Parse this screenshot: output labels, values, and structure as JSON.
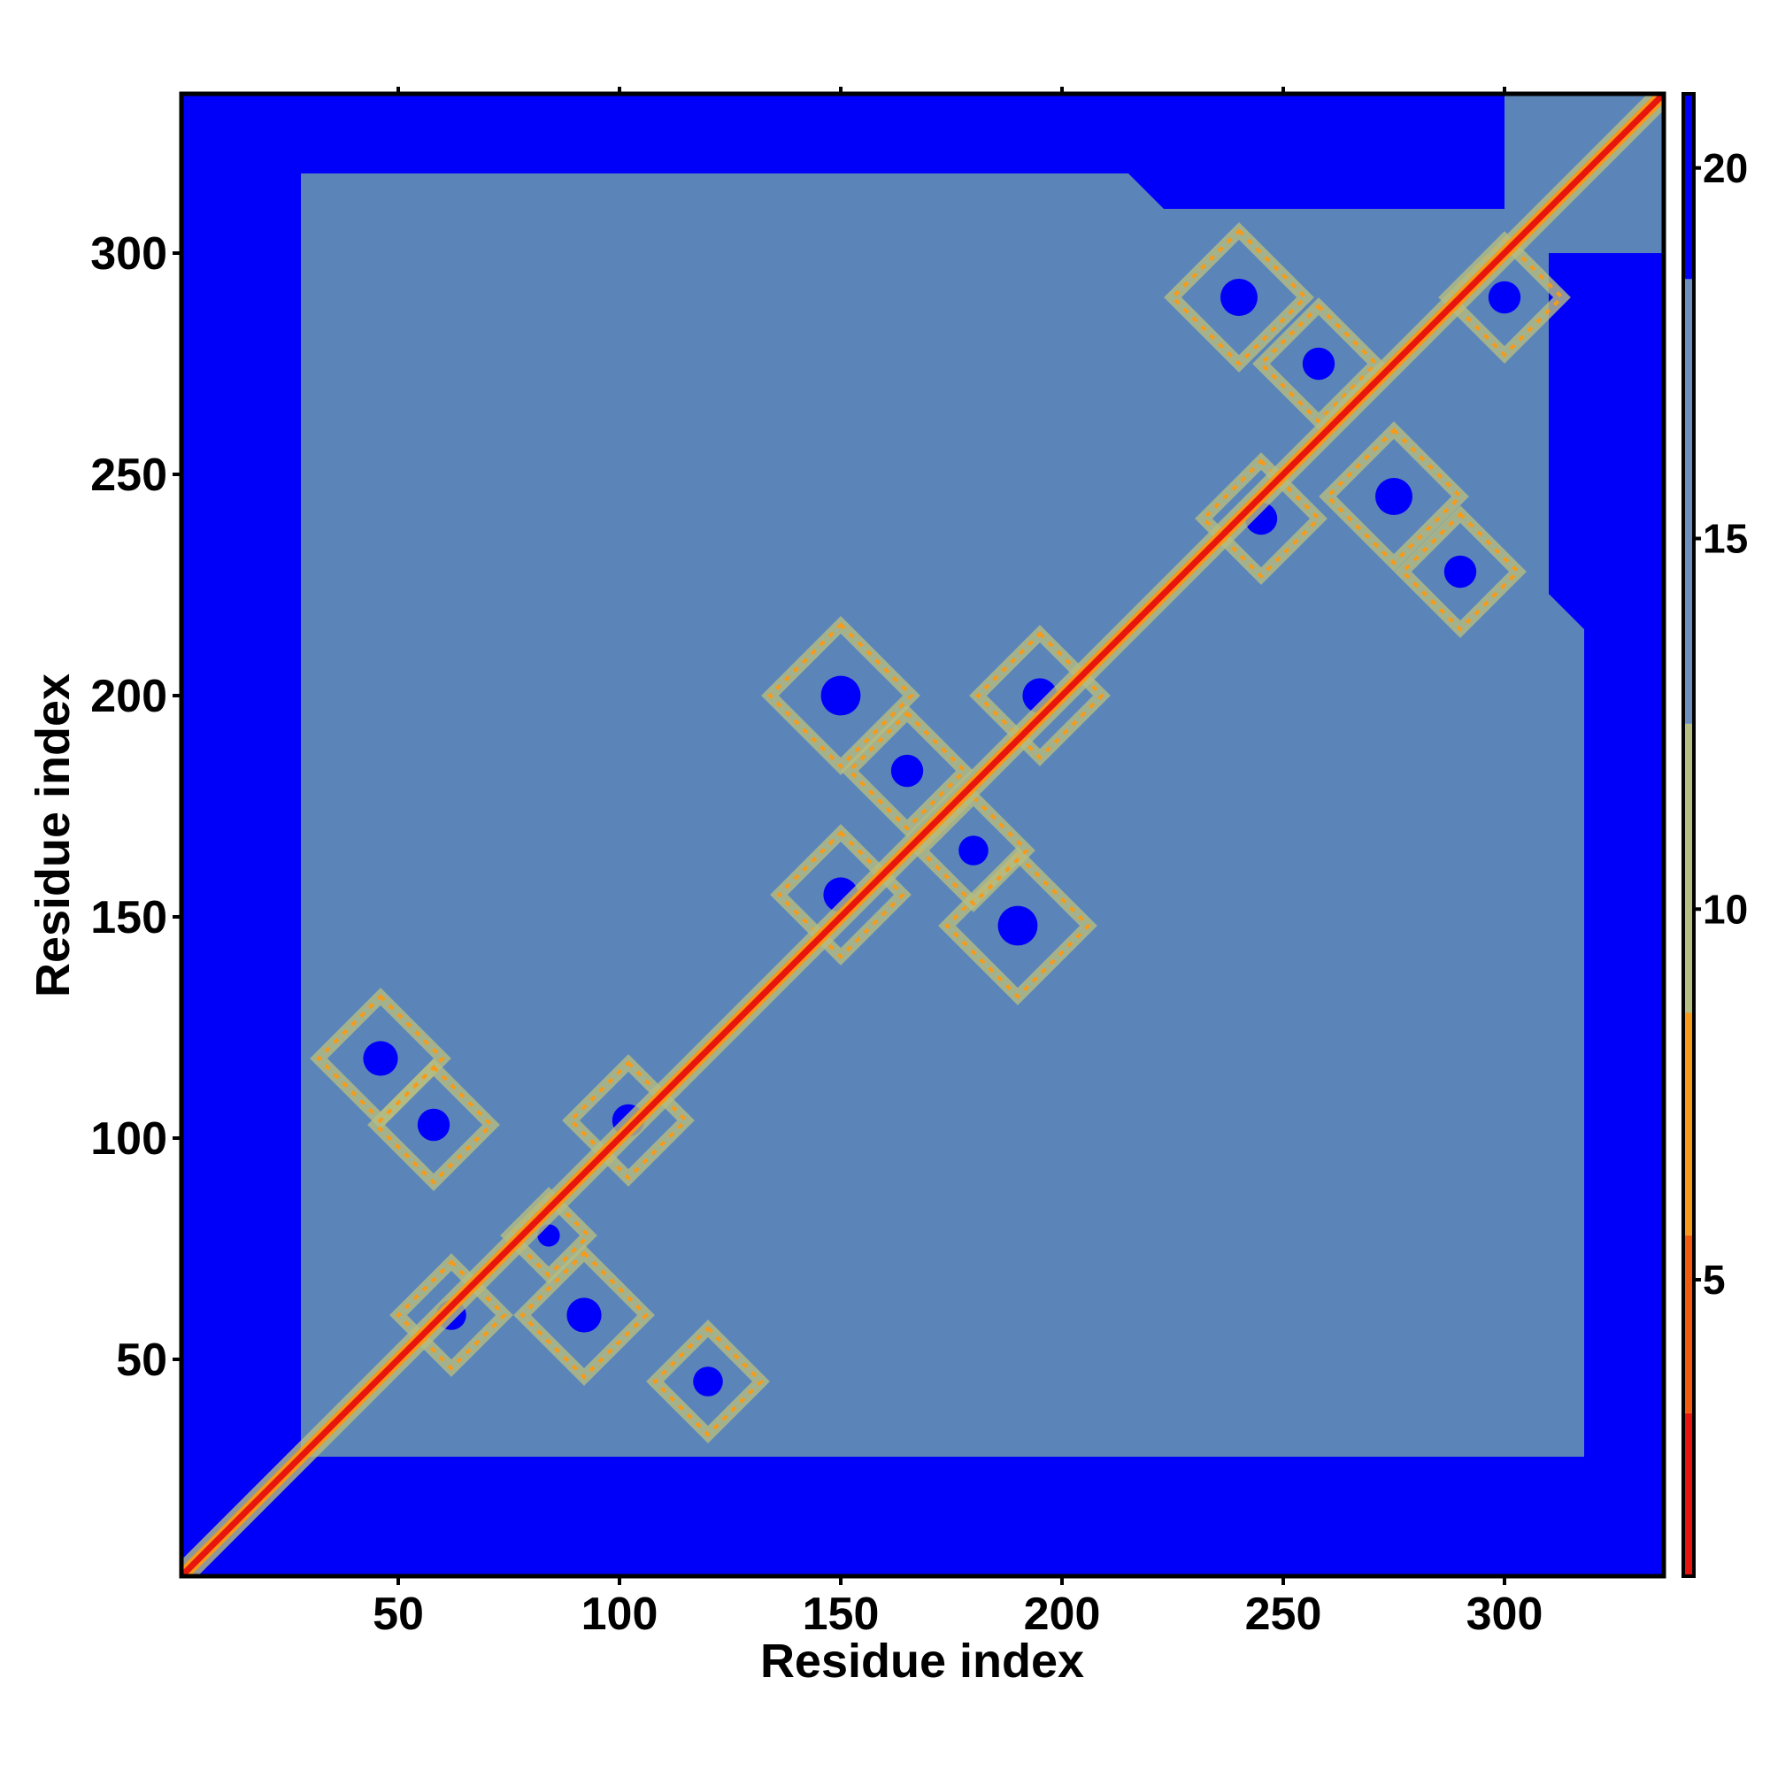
{
  "chart_data": {
    "type": "heatmap",
    "title": "",
    "xlabel": "Residue index",
    "ylabel": "Residue index",
    "xlim": [
      1,
      336
    ],
    "ylim": [
      1,
      336
    ],
    "x_ticks": [
      50,
      100,
      150,
      200,
      250,
      300
    ],
    "y_ticks": [
      50,
      100,
      150,
      200,
      250,
      300
    ],
    "colorbar": {
      "range": [
        1,
        21
      ],
      "ticks": [
        5,
        10,
        15,
        20
      ],
      "bands": [
        {
          "from": 1,
          "to": 3.2,
          "color": "#e8150f"
        },
        {
          "from": 3.2,
          "to": 5.6,
          "color": "#f25a0c"
        },
        {
          "from": 5.6,
          "to": 8.6,
          "color": "#f79a19"
        },
        {
          "from": 8.6,
          "to": 12.5,
          "color": "#b5bd82"
        },
        {
          "from": 12.5,
          "to": 18.5,
          "color": "#6e8fbe"
        },
        {
          "from": 18.5,
          "to": 21,
          "color": "#0000fa"
        }
      ]
    },
    "colors": {
      "background": "#0000fa",
      "contact_region": "#5b85b9",
      "diagonal": "#e8150f",
      "strand": "#f79a19",
      "halo": "#b5bd82"
    },
    "contact_regions": [
      {
        "x0": 28,
        "x1": 132,
        "y0": 28,
        "y1": 132
      },
      {
        "x0": 130,
        "x1": 218,
        "y0": 130,
        "y1": 218
      },
      {
        "x0": 215,
        "x1": 310,
        "y0": 215,
        "y1": 310
      },
      {
        "x0": 300,
        "x1": 336,
        "y0": 300,
        "y1": 336
      }
    ],
    "diamonds": [
      {
        "cx": 46,
        "cy": 118,
        "r": 14
      },
      {
        "cx": 58,
        "cy": 103,
        "r": 13
      },
      {
        "cx": 62,
        "cy": 60,
        "r": 12
      },
      {
        "cx": 92,
        "cy": 60,
        "r": 14
      },
      {
        "cx": 120,
        "cy": 45,
        "r": 12
      },
      {
        "cx": 102,
        "cy": 104,
        "r": 13
      },
      {
        "cx": 84,
        "cy": 78,
        "r": 9
      },
      {
        "cx": 150,
        "cy": 200,
        "r": 16
      },
      {
        "cx": 165,
        "cy": 183,
        "r": 13
      },
      {
        "cx": 150,
        "cy": 155,
        "r": 14
      },
      {
        "cx": 190,
        "cy": 148,
        "r": 16
      },
      {
        "cx": 195,
        "cy": 200,
        "r": 14
      },
      {
        "cx": 180,
        "cy": 165,
        "r": 12
      },
      {
        "cx": 240,
        "cy": 290,
        "r": 15
      },
      {
        "cx": 258,
        "cy": 275,
        "r": 13
      },
      {
        "cx": 300,
        "cy": 290,
        "r": 13
      },
      {
        "cx": 275,
        "cy": 245,
        "r": 15
      },
      {
        "cx": 290,
        "cy": 228,
        "r": 13
      },
      {
        "cx": 245,
        "cy": 240,
        "r": 13
      }
    ]
  }
}
